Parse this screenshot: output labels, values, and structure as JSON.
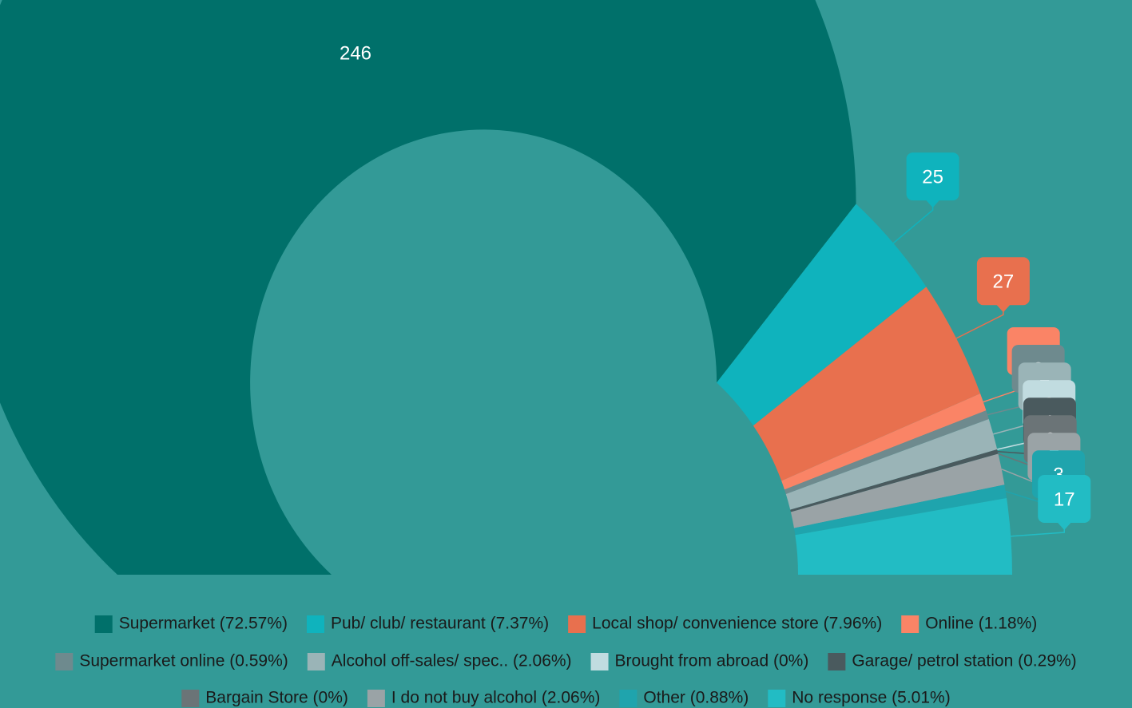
{
  "chart_data": {
    "type": "semi-donut",
    "categories": [
      "Supermarket (72.57%)",
      "Pub/ club/ restaurant (7.37%)",
      "Local shop/ convenience store (7.96%)",
      "Online (1.18%)",
      "Supermarket online (0.59%)",
      "Alcohol off-sales/ spec.. (2.06%)",
      "Brought from abroad (0%)",
      "Garage/ petrol station (0.29%)",
      "Bargain Store (0%)",
      "I do not buy alcohol (2.06%)",
      "Other (0.88%)",
      "No response (5.01%)"
    ],
    "values": [
      246,
      25,
      27,
      4,
      2,
      7,
      0,
      1,
      0,
      7,
      3,
      17
    ],
    "colors": [
      "#00706a",
      "#0fb3bd",
      "#e8704e",
      "#fa8466",
      "#6e8a8e",
      "#9ab4b7",
      "#c1dce0",
      "#4a5a5e",
      "#6b7477",
      "#9aa3a6",
      "#1fa4ad",
      "#22bcc4"
    ],
    "legend": "bottom"
  }
}
